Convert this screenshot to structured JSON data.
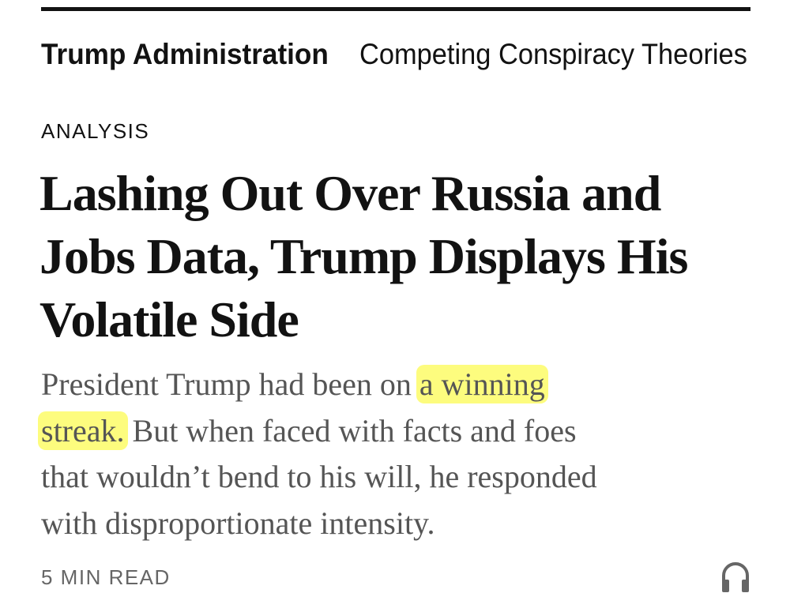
{
  "nav": {
    "active": "Trump Administration",
    "items": [
      "Competing Conspiracy Theories"
    ]
  },
  "article": {
    "kicker": "ANALYSIS",
    "headline_lines": [
      "Lashing Out Over Russia and",
      "Jobs Data, Trump Displays His",
      "Volatile Side"
    ],
    "summary": {
      "line1_pre": "President Trump had been on ",
      "line1_hl": "a winning",
      "line2_hl": "streak.",
      "line2_post": " But when faced with facts and foes",
      "line3": "that wouldn’t bend to his will, he responded",
      "line4": "with disproportionate intensity."
    },
    "read_time": "5 MIN READ",
    "audio_icon": "headphones-icon"
  },
  "colors": {
    "highlight": "#fdfc7e",
    "text": "#121212",
    "summary": "#555555"
  }
}
